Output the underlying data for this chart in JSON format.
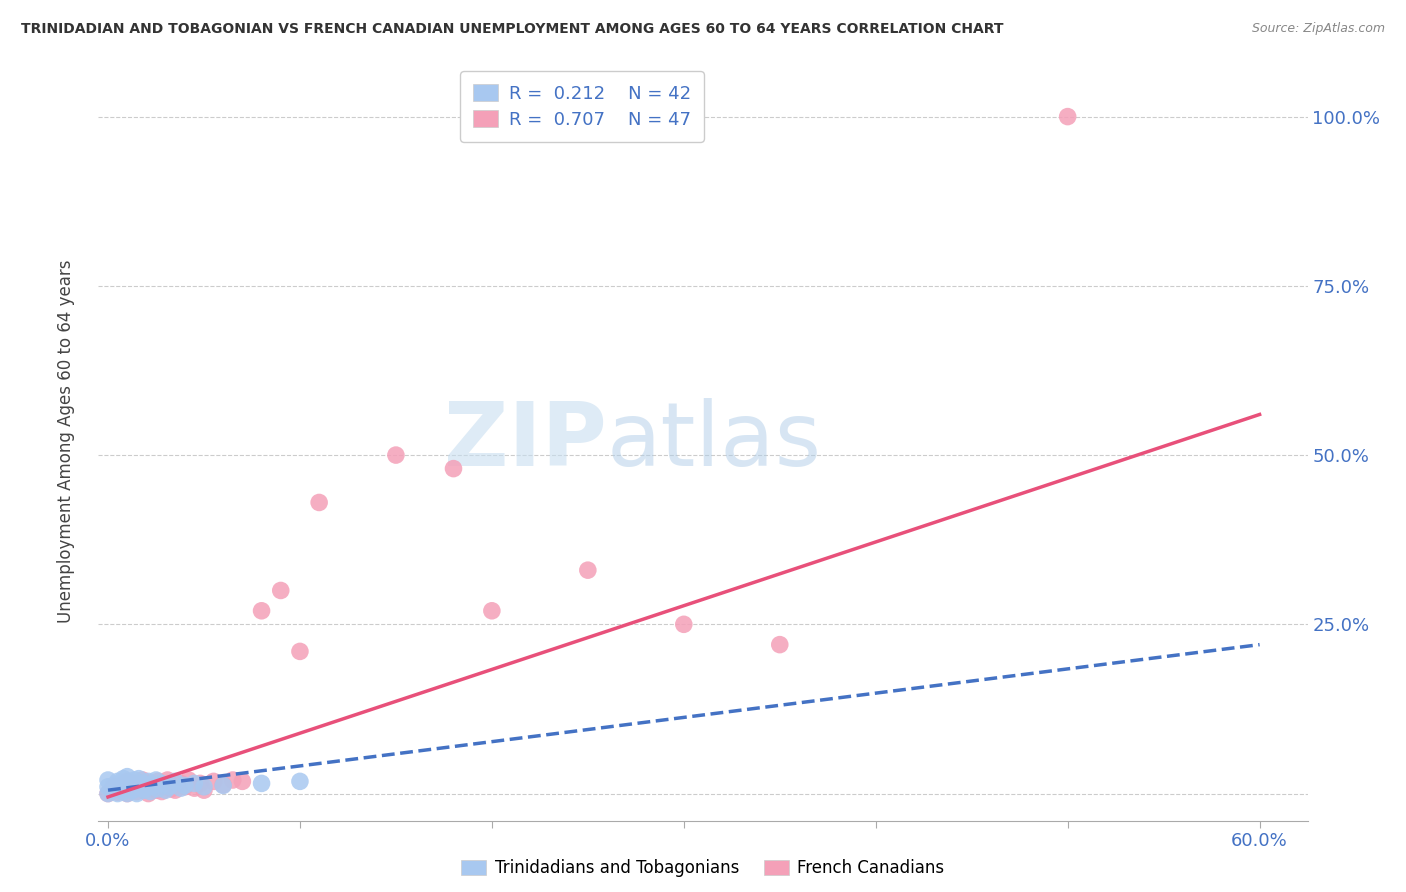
{
  "title": "TRINIDADIAN AND TOBAGONIAN VS FRENCH CANADIAN UNEMPLOYMENT AMONG AGES 60 TO 64 YEARS CORRELATION CHART",
  "source": "Source: ZipAtlas.com",
  "ylabel": "Unemployment Among Ages 60 to 64 years",
  "xlim": [
    -0.005,
    0.625
  ],
  "ylim": [
    -0.04,
    1.08
  ],
  "blue_R": "0.212",
  "blue_N": "42",
  "pink_R": "0.707",
  "pink_N": "47",
  "blue_color": "#A8C8F0",
  "pink_color": "#F4A0B8",
  "blue_line_color": "#4472C4",
  "pink_line_color": "#E8507A",
  "watermark_color": "#D8EAF8",
  "grid_color": "#CCCCCC",
  "bg_color": "#FFFFFF",
  "tick_color": "#4472C4",
  "title_color": "#333333",
  "source_color": "#888888",
  "blue_scatter_x": [
    0.0,
    0.0,
    0.0,
    0.002,
    0.003,
    0.005,
    0.005,
    0.006,
    0.007,
    0.008,
    0.008,
    0.009,
    0.01,
    0.01,
    0.01,
    0.011,
    0.012,
    0.013,
    0.014,
    0.015,
    0.015,
    0.016,
    0.017,
    0.018,
    0.019,
    0.02,
    0.021,
    0.022,
    0.023,
    0.025,
    0.026,
    0.028,
    0.03,
    0.032,
    0.035,
    0.038,
    0.04,
    0.045,
    0.05,
    0.06,
    0.08,
    0.1
  ],
  "blue_scatter_y": [
    0.0,
    0.01,
    0.02,
    0.005,
    0.012,
    0.0,
    0.018,
    0.008,
    0.015,
    0.003,
    0.022,
    0.01,
    0.0,
    0.015,
    0.025,
    0.008,
    0.018,
    0.005,
    0.02,
    0.0,
    0.012,
    0.022,
    0.008,
    0.015,
    0.005,
    0.01,
    0.018,
    0.003,
    0.012,
    0.02,
    0.007,
    0.015,
    0.005,
    0.01,
    0.018,
    0.008,
    0.012,
    0.015,
    0.01,
    0.012,
    0.015,
    0.018
  ],
  "pink_scatter_x": [
    0.0,
    0.002,
    0.003,
    0.005,
    0.007,
    0.008,
    0.01,
    0.01,
    0.012,
    0.013,
    0.015,
    0.016,
    0.018,
    0.019,
    0.02,
    0.021,
    0.022,
    0.023,
    0.025,
    0.026,
    0.027,
    0.028,
    0.03,
    0.031,
    0.033,
    0.035,
    0.038,
    0.04,
    0.042,
    0.045,
    0.048,
    0.05,
    0.055,
    0.06,
    0.065,
    0.07,
    0.08,
    0.09,
    0.1,
    0.11,
    0.15,
    0.18,
    0.2,
    0.25,
    0.3,
    0.35,
    0.5
  ],
  "pink_scatter_y": [
    0.0,
    0.005,
    0.01,
    0.002,
    0.012,
    0.005,
    0.0,
    0.018,
    0.007,
    0.015,
    0.003,
    0.012,
    0.02,
    0.005,
    0.01,
    0.0,
    0.015,
    0.008,
    0.005,
    0.018,
    0.01,
    0.003,
    0.012,
    0.02,
    0.007,
    0.005,
    0.015,
    0.01,
    0.02,
    0.008,
    0.015,
    0.005,
    0.018,
    0.013,
    0.02,
    0.018,
    0.27,
    0.3,
    0.21,
    0.43,
    0.5,
    0.48,
    0.27,
    0.33,
    0.25,
    0.22,
    1.0
  ],
  "blue_trend_x0": 0.0,
  "blue_trend_y0": 0.005,
  "blue_trend_x1": 0.6,
  "blue_trend_y1": 0.22,
  "pink_trend_x0": 0.0,
  "pink_trend_y0": -0.005,
  "pink_trend_x1": 0.6,
  "pink_trend_y1": 0.56
}
